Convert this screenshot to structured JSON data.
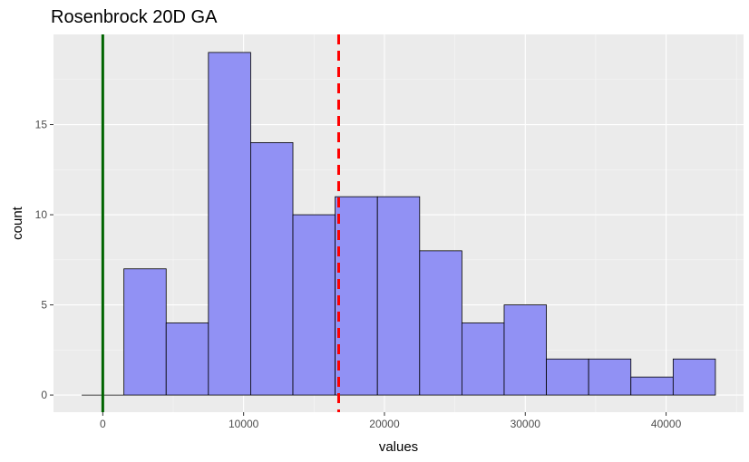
{
  "chart_data": {
    "type": "histogram",
    "title": "Rosenbrock 20D GA",
    "xlabel": "values",
    "ylabel": "count",
    "xlim": [
      -3500,
      45500
    ],
    "ylim": [
      -0.95,
      20
    ],
    "x_ticks": [
      0,
      10000,
      20000,
      30000,
      40000
    ],
    "x_tick_labels": [
      "0",
      "10000",
      "20000",
      "30000",
      "40000"
    ],
    "y_ticks": [
      0,
      5,
      10,
      15
    ],
    "y_tick_labels": [
      "0",
      "5",
      "10",
      "15"
    ],
    "bin_width": 3000,
    "bins": [
      {
        "x0": -1500,
        "x1": 1500,
        "count": 0
      },
      {
        "x0": 1500,
        "x1": 4500,
        "count": 7
      },
      {
        "x0": 4500,
        "x1": 7500,
        "count": 4
      },
      {
        "x0": 7500,
        "x1": 10500,
        "count": 19
      },
      {
        "x0": 10500,
        "x1": 13500,
        "count": 14
      },
      {
        "x0": 13500,
        "x1": 16500,
        "count": 10
      },
      {
        "x0": 16500,
        "x1": 19500,
        "count": 11
      },
      {
        "x0": 19500,
        "x1": 22500,
        "count": 11
      },
      {
        "x0": 22500,
        "x1": 25500,
        "count": 8
      },
      {
        "x0": 25500,
        "x1": 28500,
        "count": 4
      },
      {
        "x0": 28500,
        "x1": 31500,
        "count": 5
      },
      {
        "x0": 31500,
        "x1": 34500,
        "count": 2
      },
      {
        "x0": 34500,
        "x1": 37500,
        "count": 2
      },
      {
        "x0": 37500,
        "x1": 40500,
        "count": 1
      },
      {
        "x0": 40500,
        "x1": 43500,
        "count": 2
      }
    ],
    "reference_lines": [
      {
        "x": 0,
        "color": "#006400",
        "style": "solid"
      },
      {
        "x": 16750,
        "color": "#ff0000",
        "style": "dashed"
      }
    ],
    "colors": {
      "bar_fill": "#9191f4",
      "bar_stroke": "#000000",
      "panel_background": "#ebebeb",
      "grid_major": "#ffffff",
      "grid_minor": "#f7f7f7"
    },
    "grid": true
  }
}
